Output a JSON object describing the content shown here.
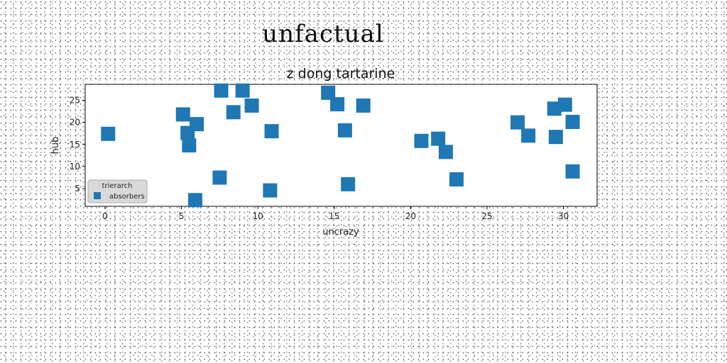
{
  "figure": {
    "suptitle": "unfactual"
  },
  "chart_data": {
    "type": "scatter",
    "title": "z dong tartarine",
    "xlabel": "uncrazy",
    "ylabel": "hub",
    "xlim": [
      -1.3,
      32.2
    ],
    "ylim": [
      1.0,
      28.6
    ],
    "xticks": [
      0,
      5,
      10,
      15,
      20,
      25,
      30
    ],
    "yticks": [
      5,
      10,
      15,
      20,
      25
    ],
    "marker": "square",
    "grid": false,
    "legend": {
      "title": "trierarch",
      "placement": "lower-left"
    },
    "series": [
      {
        "name": "absorbers",
        "color": "#1f77b4",
        "points": [
          {
            "x": 0.2,
            "y": 17.4
          },
          {
            "x": 5.1,
            "y": 21.8
          },
          {
            "x": 5.4,
            "y": 17.6
          },
          {
            "x": 5.5,
            "y": 14.8
          },
          {
            "x": 5.9,
            "y": 2.4
          },
          {
            "x": 6.0,
            "y": 19.6
          },
          {
            "x": 7.5,
            "y": 7.5
          },
          {
            "x": 7.6,
            "y": 27.2
          },
          {
            "x": 8.4,
            "y": 22.3
          },
          {
            "x": 9.0,
            "y": 27.2
          },
          {
            "x": 9.6,
            "y": 23.8
          },
          {
            "x": 10.8,
            "y": 4.6
          },
          {
            "x": 10.9,
            "y": 18.0
          },
          {
            "x": 14.6,
            "y": 26.7
          },
          {
            "x": 15.2,
            "y": 24.1
          },
          {
            "x": 15.7,
            "y": 18.2
          },
          {
            "x": 15.9,
            "y": 6.0
          },
          {
            "x": 16.9,
            "y": 23.8
          },
          {
            "x": 20.7,
            "y": 15.8
          },
          {
            "x": 21.8,
            "y": 16.3
          },
          {
            "x": 22.3,
            "y": 13.3
          },
          {
            "x": 23.0,
            "y": 7.1
          },
          {
            "x": 27.0,
            "y": 20.0
          },
          {
            "x": 27.7,
            "y": 17.0
          },
          {
            "x": 29.4,
            "y": 23.1
          },
          {
            "x": 29.5,
            "y": 16.7
          },
          {
            "x": 30.1,
            "y": 24.0
          },
          {
            "x": 30.6,
            "y": 8.9
          },
          {
            "x": 30.6,
            "y": 20.1
          }
        ]
      }
    ]
  }
}
